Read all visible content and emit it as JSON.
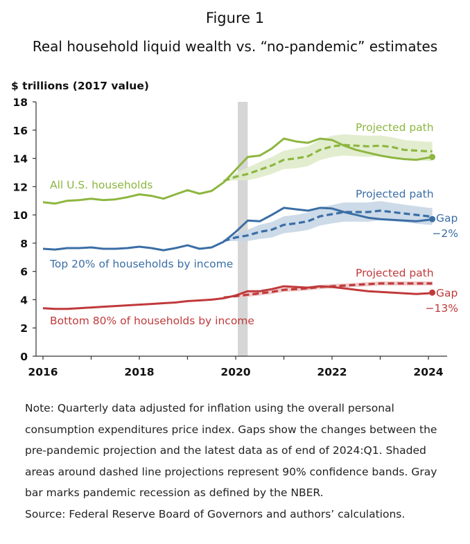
{
  "figure_label": "Figure 1",
  "title": "Real household liquid wealth vs. “no-pandemic” estimates",
  "note": "Note: Quarterly data adjusted for inflation using the overall personal consumption expenditures price index. Gaps show the changes between the pre-pandemic projection and the latest data as of end of 2024:Q1. Shaded areas around dashed line projections represent 90% confidence bands. Gray bar marks pandemic recession as defined by the NBER.",
  "source": "Source: Federal Reserve Board of Governors and authors’ calculations.",
  "chart_data": {
    "type": "line",
    "ylabel": "$ trillions (2017 value)",
    "xlim": [
      2016,
      2024.5
    ],
    "ylim": [
      0,
      18
    ],
    "xticks": [
      2016,
      2018,
      2020,
      2022,
      2024
    ],
    "yticks": [
      0,
      2,
      4,
      6,
      8,
      10,
      12,
      14,
      16,
      18
    ],
    "grid": false,
    "recession": [
      2020.0,
      2020.25
    ],
    "series": [
      {
        "name": "All U.S. households",
        "color": "#8db640",
        "actual": [
          [
            2016,
            10.9
          ],
          [
            2016.25,
            10.8
          ],
          [
            2016.5,
            11.0
          ],
          [
            2016.75,
            11.05
          ],
          [
            2017,
            11.15
          ],
          [
            2017.25,
            11.05
          ],
          [
            2017.5,
            11.1
          ],
          [
            2017.75,
            11.25
          ],
          [
            2018,
            11.45
          ],
          [
            2018.25,
            11.35
          ],
          [
            2018.5,
            11.15
          ],
          [
            2018.75,
            11.45
          ],
          [
            2019,
            11.75
          ],
          [
            2019.25,
            11.5
          ],
          [
            2019.5,
            11.7
          ],
          [
            2019.75,
            12.3
          ],
          [
            2020,
            13.2
          ],
          [
            2020.25,
            14.1
          ],
          [
            2020.5,
            14.2
          ],
          [
            2020.75,
            14.7
          ],
          [
            2021,
            15.4
          ],
          [
            2021.25,
            15.2
          ],
          [
            2021.5,
            15.1
          ],
          [
            2021.75,
            15.4
          ],
          [
            2022,
            15.3
          ],
          [
            2022.25,
            14.9
          ],
          [
            2022.5,
            14.6
          ],
          [
            2022.75,
            14.4
          ],
          [
            2023,
            14.2
          ],
          [
            2023.25,
            14.05
          ],
          [
            2023.5,
            13.95
          ],
          [
            2023.75,
            13.9
          ],
          [
            2024,
            14.05
          ],
          [
            2024.08,
            14.1
          ]
        ],
        "projection": [
          [
            2019.75,
            12.4
          ],
          [
            2020,
            12.7
          ],
          [
            2020.25,
            12.9
          ],
          [
            2020.5,
            13.2
          ],
          [
            2020.75,
            13.5
          ],
          [
            2021,
            13.9
          ],
          [
            2021.25,
            14.0
          ],
          [
            2021.5,
            14.15
          ],
          [
            2021.75,
            14.6
          ],
          [
            2022,
            14.85
          ],
          [
            2022.25,
            14.95
          ],
          [
            2022.5,
            14.9
          ],
          [
            2022.75,
            14.85
          ],
          [
            2023,
            14.9
          ],
          [
            2023.25,
            14.8
          ],
          [
            2023.5,
            14.6
          ],
          [
            2023.75,
            14.55
          ],
          [
            2024,
            14.5
          ],
          [
            2024.08,
            14.5
          ]
        ],
        "band_width": [
          0,
          0.25,
          0.45,
          0.55,
          0.6,
          0.65,
          0.7,
          0.7,
          0.72,
          0.75,
          0.75,
          0.75,
          0.75,
          0.72,
          0.7,
          0.7,
          0.68,
          0.68,
          0.68
        ],
        "label": "All U.S. households",
        "projected_label": "Projected path"
      },
      {
        "name": "Top 20% of households by income",
        "color": "#3a6ea5",
        "actual": [
          [
            2016,
            7.6
          ],
          [
            2016.25,
            7.55
          ],
          [
            2016.5,
            7.65
          ],
          [
            2016.75,
            7.65
          ],
          [
            2017,
            7.7
          ],
          [
            2017.25,
            7.6
          ],
          [
            2017.5,
            7.6
          ],
          [
            2017.75,
            7.65
          ],
          [
            2018,
            7.75
          ],
          [
            2018.25,
            7.65
          ],
          [
            2018.5,
            7.5
          ],
          [
            2018.75,
            7.65
          ],
          [
            2019,
            7.85
          ],
          [
            2019.25,
            7.6
          ],
          [
            2019.5,
            7.7
          ],
          [
            2019.75,
            8.1
          ],
          [
            2020,
            8.8
          ],
          [
            2020.25,
            9.6
          ],
          [
            2020.5,
            9.55
          ],
          [
            2020.75,
            10.0
          ],
          [
            2021,
            10.5
          ],
          [
            2021.25,
            10.4
          ],
          [
            2021.5,
            10.3
          ],
          [
            2021.75,
            10.5
          ],
          [
            2022,
            10.45
          ],
          [
            2022.25,
            10.2
          ],
          [
            2022.5,
            10.0
          ],
          [
            2022.75,
            9.8
          ],
          [
            2023,
            9.7
          ],
          [
            2023.25,
            9.65
          ],
          [
            2023.5,
            9.6
          ],
          [
            2023.75,
            9.55
          ],
          [
            2024,
            9.65
          ],
          [
            2024.08,
            9.7
          ]
        ],
        "projection": [
          [
            2019.75,
            8.15
          ],
          [
            2020,
            8.4
          ],
          [
            2020.25,
            8.55
          ],
          [
            2020.5,
            8.8
          ],
          [
            2020.75,
            8.95
          ],
          [
            2021,
            9.3
          ],
          [
            2021.25,
            9.4
          ],
          [
            2021.5,
            9.55
          ],
          [
            2021.75,
            9.9
          ],
          [
            2022,
            10.05
          ],
          [
            2022.25,
            10.2
          ],
          [
            2022.5,
            10.2
          ],
          [
            2022.75,
            10.2
          ],
          [
            2023,
            10.3
          ],
          [
            2023.25,
            10.2
          ],
          [
            2023.5,
            10.1
          ],
          [
            2023.75,
            10.0
          ],
          [
            2024,
            9.9
          ],
          [
            2024.08,
            9.9
          ]
        ],
        "band_width": [
          0,
          0.25,
          0.4,
          0.5,
          0.55,
          0.6,
          0.6,
          0.62,
          0.65,
          0.65,
          0.68,
          0.68,
          0.68,
          0.68,
          0.65,
          0.62,
          0.62,
          0.6,
          0.6
        ],
        "label": "Top 20% of households by income",
        "projected_label": "Projected path",
        "gap_label": "Gap",
        "gap_value": "−2%"
      },
      {
        "name": "Bottom 80% of households by income",
        "color": "#c0393b",
        "actual": [
          [
            2016,
            3.4
          ],
          [
            2016.25,
            3.35
          ],
          [
            2016.5,
            3.35
          ],
          [
            2016.75,
            3.4
          ],
          [
            2017,
            3.45
          ],
          [
            2017.25,
            3.5
          ],
          [
            2017.5,
            3.55
          ],
          [
            2017.75,
            3.6
          ],
          [
            2018,
            3.65
          ],
          [
            2018.25,
            3.7
          ],
          [
            2018.5,
            3.75
          ],
          [
            2018.75,
            3.8
          ],
          [
            2019,
            3.9
          ],
          [
            2019.25,
            3.95
          ],
          [
            2019.5,
            4.0
          ],
          [
            2019.75,
            4.1
          ],
          [
            2020,
            4.3
          ],
          [
            2020.25,
            4.6
          ],
          [
            2020.5,
            4.6
          ],
          [
            2020.75,
            4.75
          ],
          [
            2021,
            4.95
          ],
          [
            2021.25,
            4.9
          ],
          [
            2021.5,
            4.85
          ],
          [
            2021.75,
            4.95
          ],
          [
            2022,
            4.9
          ],
          [
            2022.25,
            4.8
          ],
          [
            2022.5,
            4.7
          ],
          [
            2022.75,
            4.6
          ],
          [
            2023,
            4.55
          ],
          [
            2023.25,
            4.5
          ],
          [
            2023.5,
            4.45
          ],
          [
            2023.75,
            4.4
          ],
          [
            2024,
            4.45
          ],
          [
            2024.08,
            4.5
          ]
        ],
        "projection": [
          [
            2019.75,
            4.15
          ],
          [
            2020,
            4.25
          ],
          [
            2020.25,
            4.35
          ],
          [
            2020.5,
            4.45
          ],
          [
            2020.75,
            4.55
          ],
          [
            2021,
            4.7
          ],
          [
            2021.25,
            4.75
          ],
          [
            2021.5,
            4.8
          ],
          [
            2021.75,
            4.9
          ],
          [
            2022,
            4.95
          ],
          [
            2022.25,
            5.0
          ],
          [
            2022.5,
            5.05
          ],
          [
            2022.75,
            5.1
          ],
          [
            2023,
            5.15
          ],
          [
            2023.25,
            5.15
          ],
          [
            2023.5,
            5.15
          ],
          [
            2023.75,
            5.15
          ],
          [
            2024,
            5.15
          ],
          [
            2024.08,
            5.15
          ]
        ],
        "band_width": [
          0,
          0.1,
          0.15,
          0.15,
          0.15,
          0.15,
          0.15,
          0.15,
          0.15,
          0.15,
          0.15,
          0.15,
          0.15,
          0.15,
          0.15,
          0.15,
          0.15,
          0.15,
          0.15
        ],
        "label": "Bottom 80% of households by income",
        "projected_label": "Projected path",
        "gap_label": "Gap",
        "gap_value": "−13%"
      }
    ]
  }
}
